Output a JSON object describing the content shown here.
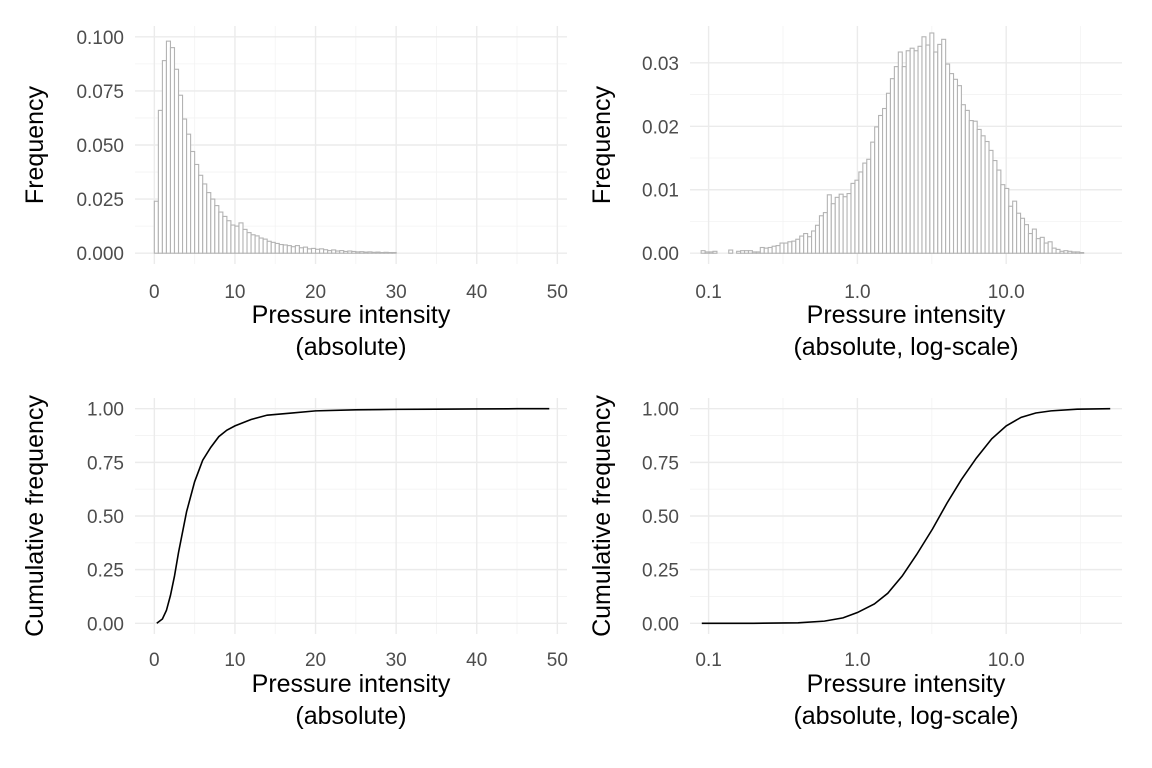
{
  "chart_data": [
    {
      "type": "bar",
      "panel": "top-left",
      "xlabel": [
        "Pressure intensity",
        "(absolute)"
      ],
      "ylabel": "Frequency",
      "xscale": "linear",
      "xlim": [
        -2.4,
        51.2
      ],
      "ylim": [
        -0.005,
        0.105
      ],
      "xticks": [
        0,
        10,
        20,
        30,
        40,
        50
      ],
      "xtick_labels": [
        "0",
        "10",
        "20",
        "30",
        "40",
        "50"
      ],
      "yticks": [
        0,
        0.025,
        0.05,
        0.075,
        0.1
      ],
      "ytick_labels": [
        "0.000",
        "0.025",
        "0.050",
        "0.075",
        "0.100"
      ],
      "grid": true,
      "bin_width": 0.5,
      "bin_start": 0,
      "values": [
        0.024,
        0.066,
        0.089,
        0.098,
        0.095,
        0.085,
        0.073,
        0.062,
        0.055,
        0.047,
        0.041,
        0.036,
        0.032,
        0.028,
        0.025,
        0.022,
        0.019,
        0.017,
        0.015,
        0.013,
        0.0125,
        0.014,
        0.011,
        0.0095,
        0.0085,
        0.008,
        0.007,
        0.0065,
        0.0055,
        0.005,
        0.0045,
        0.004,
        0.0038,
        0.0035,
        0.003,
        0.0035,
        0.0025,
        0.0028,
        0.002,
        0.0022,
        0.0018,
        0.002,
        0.0016,
        0.0012,
        0.0015,
        0.001,
        0.0012,
        0.0008,
        0.001,
        0.0008,
        0.0006,
        0.0007,
        0.0005,
        0.0006,
        0.0004,
        0.0005,
        0.0003,
        0.0004,
        0.0003,
        0.0003
      ]
    },
    {
      "type": "bar",
      "panel": "top-right",
      "xlabel": [
        "Pressure intensity",
        "(absolute, log-scale)"
      ],
      "ylabel": "Frequency",
      "xscale": "log10",
      "xlim": [
        0.075,
        60
      ],
      "ylim": [
        -0.0017,
        0.0358
      ],
      "xticks": [
        0.1,
        1,
        10
      ],
      "xtick_labels": [
        "0.1",
        "1.0",
        "10.0"
      ],
      "yticks": [
        0,
        0.01,
        0.02,
        0.03
      ],
      "ytick_labels": [
        "0.00",
        "0.01",
        "0.02",
        "0.03"
      ],
      "grid": true,
      "bin_log_start": -1.05,
      "bin_log_width": 0.0265,
      "values": [
        0.0004,
        0.0002,
        0.0002,
        0.0003,
        0.0,
        0.0,
        0.0,
        0.0005,
        0.0,
        0.0003,
        0.0004,
        0.0004,
        0.0004,
        0.0002,
        0.0002,
        0.0009,
        0.0008,
        0.0009,
        0.0011,
        0.0012,
        0.0016,
        0.0016,
        0.0018,
        0.0019,
        0.0022,
        0.0027,
        0.0031,
        0.0026,
        0.0035,
        0.0044,
        0.0059,
        0.0064,
        0.0092,
        0.0078,
        0.0088,
        0.0093,
        0.0089,
        0.0094,
        0.011,
        0.0115,
        0.0128,
        0.0142,
        0.0148,
        0.0175,
        0.0199,
        0.0217,
        0.0228,
        0.0252,
        0.0275,
        0.0294,
        0.0317,
        0.0294,
        0.0319,
        0.0323,
        0.0319,
        0.0326,
        0.0341,
        0.0328,
        0.0347,
        0.0317,
        0.0329,
        0.0337,
        0.0298,
        0.0283,
        0.0274,
        0.0264,
        0.0234,
        0.0225,
        0.0209,
        0.0208,
        0.0195,
        0.0185,
        0.0176,
        0.0162,
        0.0146,
        0.0131,
        0.0108,
        0.0102,
        0.0074,
        0.0082,
        0.0063,
        0.0055,
        0.0045,
        0.0031,
        0.0038,
        0.0023,
        0.0025,
        0.0016,
        0.0018,
        0.0008,
        0.0006,
        0.0003,
        0.0004,
        0.0003,
        0.0002,
        0.0002,
        0.0001
      ]
    },
    {
      "type": "line",
      "panel": "bottom-left",
      "xlabel": [
        "Pressure intensity",
        "(absolute)"
      ],
      "ylabel": "Cumulative frequency",
      "xscale": "linear",
      "xlim": [
        -2.4,
        51.2
      ],
      "ylim": [
        -0.05,
        1.05
      ],
      "xticks": [
        0,
        10,
        20,
        30,
        40,
        50
      ],
      "xtick_labels": [
        "0",
        "10",
        "20",
        "30",
        "40",
        "50"
      ],
      "yticks": [
        0,
        0.25,
        0.5,
        0.75,
        1.0
      ],
      "ytick_labels": [
        "0.00",
        "0.25",
        "0.50",
        "0.75",
        "1.00"
      ],
      "grid": true,
      "series": [
        {
          "x": [
            0.3,
            1,
            1.5,
            2,
            2.5,
            3,
            4,
            5,
            6,
            7,
            8,
            9,
            10,
            12,
            14,
            17,
            20,
            25,
            30,
            35,
            40,
            45,
            49
          ],
          "values": [
            0.0,
            0.02,
            0.06,
            0.13,
            0.22,
            0.33,
            0.52,
            0.66,
            0.76,
            0.82,
            0.87,
            0.9,
            0.92,
            0.95,
            0.97,
            0.98,
            0.99,
            0.995,
            0.997,
            0.998,
            0.999,
            1.0,
            1.0
          ]
        }
      ]
    },
    {
      "type": "line",
      "panel": "bottom-right",
      "xlabel": [
        "Pressure intensity",
        "(absolute, log-scale)"
      ],
      "ylabel": "Cumulative frequency",
      "xscale": "log10",
      "xlim": [
        0.075,
        60
      ],
      "ylim": [
        -0.05,
        1.05
      ],
      "xticks": [
        0.1,
        1,
        10
      ],
      "xtick_labels": [
        "0.1",
        "1.0",
        "10.0"
      ],
      "yticks": [
        0,
        0.25,
        0.5,
        0.75,
        1.0
      ],
      "ytick_labels": [
        "0.00",
        "0.25",
        "0.50",
        "0.75",
        "1.00"
      ],
      "grid": true,
      "series": [
        {
          "x": [
            0.09,
            0.2,
            0.4,
            0.6,
            0.8,
            1.0,
            1.3,
            1.6,
            2.0,
            2.5,
            3.2,
            4.0,
            5.0,
            6.3,
            8.0,
            10.0,
            12.6,
            15.8,
            20.0,
            30.0,
            50.0
          ],
          "values": [
            0.0,
            0.0,
            0.002,
            0.01,
            0.025,
            0.05,
            0.09,
            0.14,
            0.22,
            0.32,
            0.44,
            0.56,
            0.67,
            0.77,
            0.86,
            0.92,
            0.96,
            0.98,
            0.99,
            0.998,
            1.0
          ]
        }
      ]
    }
  ]
}
